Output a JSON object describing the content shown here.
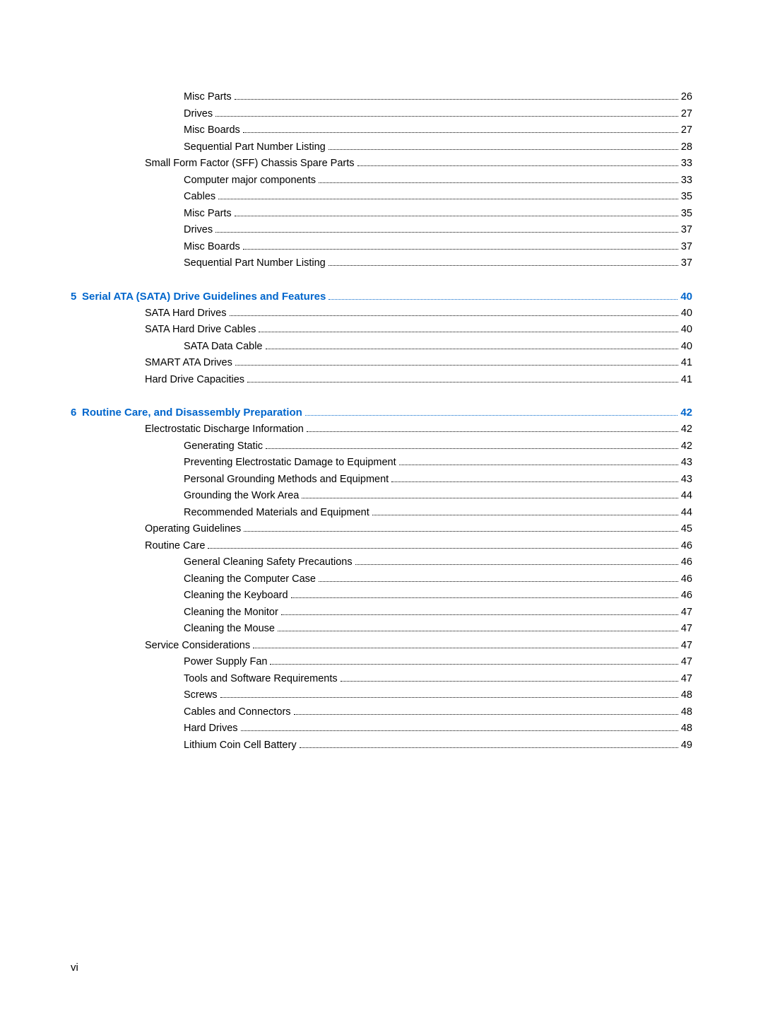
{
  "colors": {
    "text": "#000000",
    "link": "#0066cc",
    "background": "#ffffff",
    "dots": "#000000"
  },
  "typography": {
    "body_fontsize": 14.5,
    "chapter_fontsize": 15,
    "font_family": "Arial"
  },
  "page_number_label": "vi",
  "entries": [
    {
      "indent": 3,
      "label": "Misc Parts",
      "page": "26",
      "chapter": false
    },
    {
      "indent": 3,
      "label": "Drives",
      "page": "27",
      "chapter": false
    },
    {
      "indent": 3,
      "label": "Misc Boards",
      "page": "27",
      "chapter": false
    },
    {
      "indent": 3,
      "label": "Sequential Part Number Listing",
      "page": "28",
      "chapter": false
    },
    {
      "indent": 2,
      "label": "Small Form Factor (SFF) Chassis Spare Parts",
      "page": "33",
      "chapter": false
    },
    {
      "indent": 3,
      "label": "Computer major components",
      "page": "33",
      "chapter": false
    },
    {
      "indent": 3,
      "label": "Cables",
      "page": "35",
      "chapter": false
    },
    {
      "indent": 3,
      "label": "Misc Parts",
      "page": "35",
      "chapter": false
    },
    {
      "indent": 3,
      "label": "Drives",
      "page": "37",
      "chapter": false
    },
    {
      "indent": 3,
      "label": "Misc Boards",
      "page": "37",
      "chapter": false
    },
    {
      "indent": 3,
      "label": "Sequential Part Number Listing",
      "page": "37",
      "chapter": false
    },
    {
      "indent": 0,
      "label": "Serial ATA (SATA) Drive Guidelines and Features",
      "page": "40",
      "chapter": true,
      "chapter_num": "5",
      "gap": true
    },
    {
      "indent": 2,
      "label": "SATA Hard Drives",
      "page": "40",
      "chapter": false
    },
    {
      "indent": 2,
      "label": "SATA Hard Drive Cables",
      "page": "40",
      "chapter": false
    },
    {
      "indent": 3,
      "label": "SATA Data Cable",
      "page": "40",
      "chapter": false
    },
    {
      "indent": 2,
      "label": "SMART ATA Drives",
      "page": "41",
      "chapter": false
    },
    {
      "indent": 2,
      "label": "Hard Drive Capacities",
      "page": "41",
      "chapter": false
    },
    {
      "indent": 0,
      "label": "Routine Care, and Disassembly Preparation",
      "page": "42",
      "chapter": true,
      "chapter_num": "6",
      "gap": true
    },
    {
      "indent": 2,
      "label": "Electrostatic Discharge Information",
      "page": "42",
      "chapter": false
    },
    {
      "indent": 3,
      "label": "Generating Static",
      "page": "42",
      "chapter": false
    },
    {
      "indent": 3,
      "label": "Preventing Electrostatic Damage to Equipment",
      "page": "43",
      "chapter": false
    },
    {
      "indent": 3,
      "label": "Personal Grounding Methods and Equipment",
      "page": "43",
      "chapter": false
    },
    {
      "indent": 3,
      "label": "Grounding the Work Area",
      "page": "44",
      "chapter": false
    },
    {
      "indent": 3,
      "label": "Recommended Materials and Equipment",
      "page": "44",
      "chapter": false
    },
    {
      "indent": 2,
      "label": "Operating Guidelines",
      "page": "45",
      "chapter": false
    },
    {
      "indent": 2,
      "label": "Routine Care",
      "page": "46",
      "chapter": false
    },
    {
      "indent": 3,
      "label": "General Cleaning Safety Precautions",
      "page": "46",
      "chapter": false
    },
    {
      "indent": 3,
      "label": "Cleaning the Computer Case",
      "page": "46",
      "chapter": false
    },
    {
      "indent": 3,
      "label": "Cleaning the Keyboard",
      "page": "46",
      "chapter": false
    },
    {
      "indent": 3,
      "label": "Cleaning the Monitor",
      "page": "47",
      "chapter": false
    },
    {
      "indent": 3,
      "label": "Cleaning the Mouse",
      "page": "47",
      "chapter": false
    },
    {
      "indent": 2,
      "label": "Service Considerations",
      "page": "47",
      "chapter": false
    },
    {
      "indent": 3,
      "label": "Power Supply Fan",
      "page": "47",
      "chapter": false
    },
    {
      "indent": 3,
      "label": "Tools and Software Requirements",
      "page": "47",
      "chapter": false
    },
    {
      "indent": 3,
      "label": "Screws",
      "page": "48",
      "chapter": false
    },
    {
      "indent": 3,
      "label": "Cables and Connectors",
      "page": "48",
      "chapter": false
    },
    {
      "indent": 3,
      "label": "Hard Drives",
      "page": "48",
      "chapter": false
    },
    {
      "indent": 3,
      "label": "Lithium Coin Cell Battery",
      "page": "49",
      "chapter": false
    }
  ]
}
